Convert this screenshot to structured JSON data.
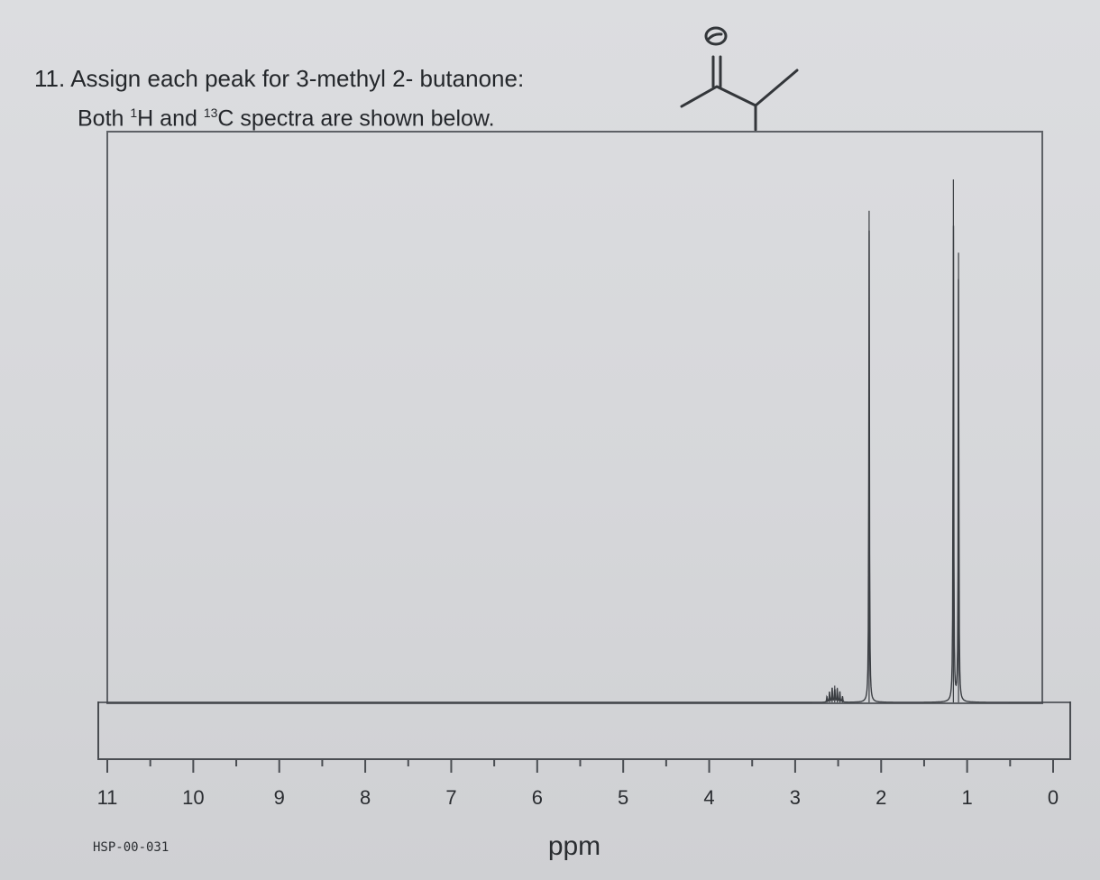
{
  "question": {
    "number": "11.",
    "line1": "Assign each peak for 3-methyl 2- butanone:",
    "line2_prefix": "Both ",
    "h_iso": "1",
    "h_mid": "H and ",
    "c_iso": "13",
    "line2_suffix": "C spectra are shown below."
  },
  "structure": {
    "oxygen_label": "O"
  },
  "chart_data": {
    "type": "line",
    "title": "",
    "xlabel": "ppm",
    "ylabel": "",
    "xlim": [
      11,
      0
    ],
    "x_reversed": true,
    "x_ticks": [
      11,
      10,
      9,
      8,
      7,
      6,
      5,
      4,
      3,
      2,
      1,
      0
    ],
    "x_tick_labels": [
      "11",
      "10",
      "9",
      "8",
      "7",
      "6",
      "5",
      "4",
      "3",
      "2",
      "1",
      "0"
    ],
    "spectrum_id": "HSP-00-031",
    "grid": false,
    "peaks": [
      {
        "ppm": 2.63,
        "rel_intensity": 0.012,
        "multiplicity": "septet"
      },
      {
        "ppm": 2.6,
        "rel_intensity": 0.02,
        "multiplicity": "septet"
      },
      {
        "ppm": 2.57,
        "rel_intensity": 0.028,
        "multiplicity": "septet"
      },
      {
        "ppm": 2.54,
        "rel_intensity": 0.032,
        "multiplicity": "septet"
      },
      {
        "ppm": 2.51,
        "rel_intensity": 0.028,
        "multiplicity": "septet"
      },
      {
        "ppm": 2.48,
        "rel_intensity": 0.02,
        "multiplicity": "septet"
      },
      {
        "ppm": 2.45,
        "rel_intensity": 0.012,
        "multiplicity": "septet"
      },
      {
        "ppm": 2.14,
        "rel_intensity": 0.94,
        "multiplicity": "singlet"
      },
      {
        "ppm": 1.16,
        "rel_intensity": 1.0,
        "multiplicity": "doublet"
      },
      {
        "ppm": 1.1,
        "rel_intensity": 0.86,
        "multiplicity": "doublet"
      }
    ]
  }
}
